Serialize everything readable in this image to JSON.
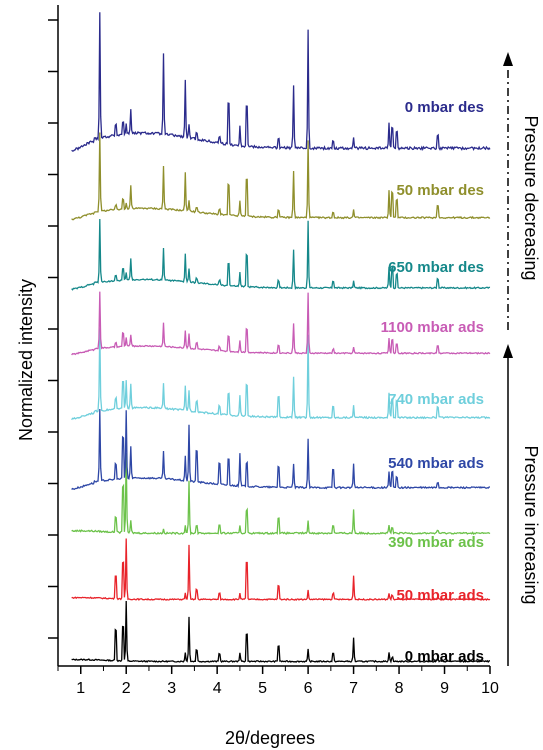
{
  "chart_data": {
    "type": "line",
    "xlabel": "2θ/degrees",
    "ylabel": "Normalized intensity",
    "xlim": [
      0.5,
      10
    ],
    "xticks": [
      "1",
      "2",
      "3",
      "4",
      "5",
      "6",
      "7",
      "8",
      "9",
      "10"
    ],
    "peak_positions": [
      1.42,
      1.77,
      1.93,
      2.0,
      2.1,
      2.82,
      3.3,
      3.38,
      3.55,
      4.05,
      4.25,
      4.5,
      4.65,
      5.35,
      5.68,
      6.0,
      6.55,
      7.0,
      7.78,
      7.85,
      7.95,
      8.85
    ],
    "series": [
      {
        "name": "0 mbar ads",
        "color": "#000000",
        "peaks": [
          0,
          0.8,
          0.9,
          1.0,
          0,
          0,
          0.15,
          0.75,
          0.3,
          0.2,
          0,
          0.15,
          0.7,
          0.4,
          0,
          0.2,
          0.2,
          0.4,
          0.15,
          0.1,
          0,
          0.05
        ]
      },
      {
        "name": "50 mbar ads",
        "color": "#e8232a",
        "peaks": [
          0,
          0.6,
          0.95,
          1.0,
          0,
          0,
          0.1,
          0.9,
          0.25,
          0.15,
          0,
          0.1,
          0.95,
          0.35,
          0,
          0.15,
          0.15,
          0.4,
          0.1,
          0.1,
          0,
          0.05
        ]
      },
      {
        "name": "390 mbar ads",
        "color": "#6cc24a",
        "peaks": [
          0,
          0.3,
          0.9,
          1.0,
          0.15,
          0.05,
          0.1,
          0.65,
          0.15,
          0.15,
          0,
          0.1,
          0.45,
          0.3,
          0,
          0.15,
          0.15,
          0.3,
          0.1,
          0.1,
          0,
          0.05
        ]
      },
      {
        "name": "540 mbar ads",
        "color": "#2e47a6",
        "peaks": [
          0.9,
          0.3,
          0.8,
          0.85,
          0.4,
          0.35,
          0.3,
          0.7,
          0.6,
          0.4,
          0.5,
          0.4,
          0.45,
          0.4,
          0.3,
          0.6,
          0.35,
          0.3,
          0.2,
          0.3,
          0.2,
          0.1
        ]
      },
      {
        "name": "740 mbar ads",
        "color": "#6fcfdc",
        "peaks": [
          1.0,
          0.2,
          0.5,
          0.35,
          0.3,
          0.3,
          0.3,
          0.25,
          0.2,
          0.15,
          0.4,
          0.25,
          0.6,
          0.4,
          0.5,
          1.0,
          0.2,
          0.15,
          0.3,
          0.35,
          0.3,
          0.2
        ]
      },
      {
        "name": "1100 mbar ads",
        "color": "#c85cb5",
        "peaks": [
          0.95,
          0.1,
          0.35,
          0.15,
          0.2,
          0.4,
          0.3,
          0.25,
          0.15,
          0.1,
          0.4,
          0.2,
          0.6,
          0.2,
          0.5,
          1.0,
          0.1,
          0.1,
          0.25,
          0.35,
          0.25,
          0.2
        ]
      },
      {
        "name": "650 mbar des",
        "color": "#15888a",
        "peaks": [
          0.9,
          0.1,
          0.25,
          0.1,
          0.3,
          0.45,
          0.4,
          0.2,
          0.1,
          0.1,
          0.5,
          0.2,
          0.7,
          0.15,
          0.55,
          0.95,
          0.15,
          0.1,
          0.3,
          0.45,
          0.3,
          0.2
        ]
      },
      {
        "name": "50 mbar des",
        "color": "#8f8f2c",
        "peaks": [
          1.0,
          0.08,
          0.2,
          0.08,
          0.3,
          0.55,
          0.5,
          0.15,
          0.1,
          0.1,
          0.6,
          0.2,
          0.75,
          0.15,
          0.6,
          1.0,
          0.1,
          0.1,
          0.35,
          0.5,
          0.35,
          0.25
        ]
      },
      {
        "name": "0 mbar des",
        "color": "#2b2b8c",
        "peaks": [
          1.0,
          0.12,
          0.15,
          0.08,
          0.2,
          0.65,
          0.45,
          0.1,
          0.08,
          0.08,
          0.5,
          0.15,
          0.5,
          0.1,
          0.5,
          0.95,
          0.08,
          0.08,
          0.2,
          0.25,
          0.2,
          0.15
        ]
      }
    ],
    "annotations": {
      "decreasing": "Pressure decreasing",
      "increasing": "Pressure increasing"
    }
  }
}
